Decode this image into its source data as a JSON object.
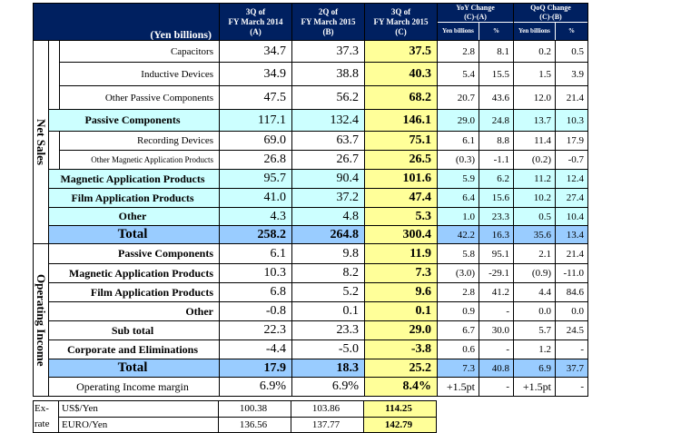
{
  "header": {
    "unit": "(Yen billions)",
    "col_a_line1": "3Q of",
    "col_a_line2": "FY March 2014",
    "col_a_line3": "(A)",
    "col_b_line1": "2Q of",
    "col_b_line2": "FY March 2015",
    "col_b_line3": "(B)",
    "col_c_line1": "3Q of",
    "col_c_line2": "FY March 2015",
    "col_c_line3": "(C)",
    "yoy_title": "YoY Change",
    "yoy_sub": "(C)-(A)",
    "qoq_title": "QoQ Change",
    "qoq_sub": "(C)-(B)",
    "yen_billions": "Yen billions",
    "pct": "%"
  },
  "net_sales": {
    "side_label": "Net Sales",
    "rows": [
      {
        "label": "Capacitors",
        "a": "34.7",
        "b": "37.3",
        "c": "37.5",
        "yoy_amt": "2.8",
        "yoy_pct": "8.1",
        "qoq_amt": "0.2",
        "qoq_pct": "0.5"
      },
      {
        "label": "Inductive Devices",
        "a": "34.9",
        "b": "38.8",
        "c": "40.3",
        "yoy_amt": "5.4",
        "yoy_pct": "15.5",
        "qoq_amt": "1.5",
        "qoq_pct": "3.9"
      },
      {
        "label": "Other Passive Components",
        "a": "47.5",
        "b": "56.2",
        "c": "68.2",
        "yoy_amt": "20.7",
        "yoy_pct": "43.6",
        "qoq_amt": "12.0",
        "qoq_pct": "21.4"
      },
      {
        "label": "Passive Components",
        "a": "117.1",
        "b": "132.4",
        "c": "146.1",
        "yoy_amt": "29.0",
        "yoy_pct": "24.8",
        "qoq_amt": "13.7",
        "qoq_pct": "10.3"
      },
      {
        "label": "Recording Devices",
        "a": "69.0",
        "b": "63.7",
        "c": "75.1",
        "yoy_amt": "6.1",
        "yoy_pct": "8.8",
        "qoq_amt": "11.4",
        "qoq_pct": "17.9"
      },
      {
        "label": "Other Magnetic Application Products",
        "a": "26.8",
        "b": "26.7",
        "c": "26.5",
        "yoy_amt": "(0.3)",
        "yoy_pct": "-1.1",
        "qoq_amt": "(0.2)",
        "qoq_pct": "-0.7"
      },
      {
        "label": "Magnetic Application Products",
        "a": "95.7",
        "b": "90.4",
        "c": "101.6",
        "yoy_amt": "5.9",
        "yoy_pct": "6.2",
        "qoq_amt": "11.2",
        "qoq_pct": "12.4"
      },
      {
        "label": "Film Application Products",
        "a": "41.0",
        "b": "37.2",
        "c": "47.4",
        "yoy_amt": "6.4",
        "yoy_pct": "15.6",
        "qoq_amt": "10.2",
        "qoq_pct": "27.4"
      },
      {
        "label": "Other",
        "a": "4.3",
        "b": "4.8",
        "c": "5.3",
        "yoy_amt": "1.0",
        "yoy_pct": "23.3",
        "qoq_amt": "0.5",
        "qoq_pct": "10.4"
      },
      {
        "label": "Total",
        "a": "258.2",
        "b": "264.8",
        "c": "300.4",
        "yoy_amt": "42.2",
        "yoy_pct": "16.3",
        "qoq_amt": "35.6",
        "qoq_pct": "13.4"
      }
    ]
  },
  "operating_income": {
    "side_label": "Operating Income",
    "rows": [
      {
        "label": "Passive Components",
        "a": "6.1",
        "b": "9.8",
        "c": "11.9",
        "yoy_amt": "5.8",
        "yoy_pct": "95.1",
        "qoq_amt": "2.1",
        "qoq_pct": "21.4"
      },
      {
        "label": "Magnetic Application Products",
        "a": "10.3",
        "b": "8.2",
        "c": "7.3",
        "yoy_amt": "(3.0)",
        "yoy_pct": "-29.1",
        "qoq_amt": "(0.9)",
        "qoq_pct": "-11.0"
      },
      {
        "label": "Film Application Products",
        "a": "6.8",
        "b": "5.2",
        "c": "9.6",
        "yoy_amt": "2.8",
        "yoy_pct": "41.2",
        "qoq_amt": "4.4",
        "qoq_pct": "84.6"
      },
      {
        "label": "Other",
        "a": "-0.8",
        "b": "0.1",
        "c": "0.1",
        "yoy_amt": "0.9",
        "yoy_pct": "-",
        "qoq_amt": "0.0",
        "qoq_pct": "0.0"
      },
      {
        "label": "Sub total",
        "a": "22.3",
        "b": "23.3",
        "c": "29.0",
        "yoy_amt": "6.7",
        "yoy_pct": "30.0",
        "qoq_amt": "5.7",
        "qoq_pct": "24.5"
      },
      {
        "label": "Corporate and Eliminations",
        "a": "-4.4",
        "b": "-5.0",
        "c": "-3.8",
        "yoy_amt": "0.6",
        "yoy_pct": "-",
        "qoq_amt": "1.2",
        "qoq_pct": "-"
      },
      {
        "label": "Total",
        "a": "17.9",
        "b": "18.3",
        "c": "25.2",
        "yoy_amt": "7.3",
        "yoy_pct": "40.8",
        "qoq_amt": "6.9",
        "qoq_pct": "37.7"
      }
    ],
    "margin": {
      "label": "Operating Income margin",
      "a": "6.9%",
      "b": "6.9%",
      "c": "8.4%",
      "yoy_amt": "+1.5pt",
      "yoy_pct": "-",
      "qoq_amt": "+1.5pt",
      "qoq_pct": "-"
    }
  },
  "fx": {
    "side_line1": "Ex-",
    "side_line2": "rate",
    "rows": [
      {
        "label": "US$/Yen",
        "a": "100.38",
        "b": "103.86",
        "c": "114.25"
      },
      {
        "label": "EURO/Yen",
        "a": "136.56",
        "b": "137.77",
        "c": "142.79"
      }
    ]
  }
}
